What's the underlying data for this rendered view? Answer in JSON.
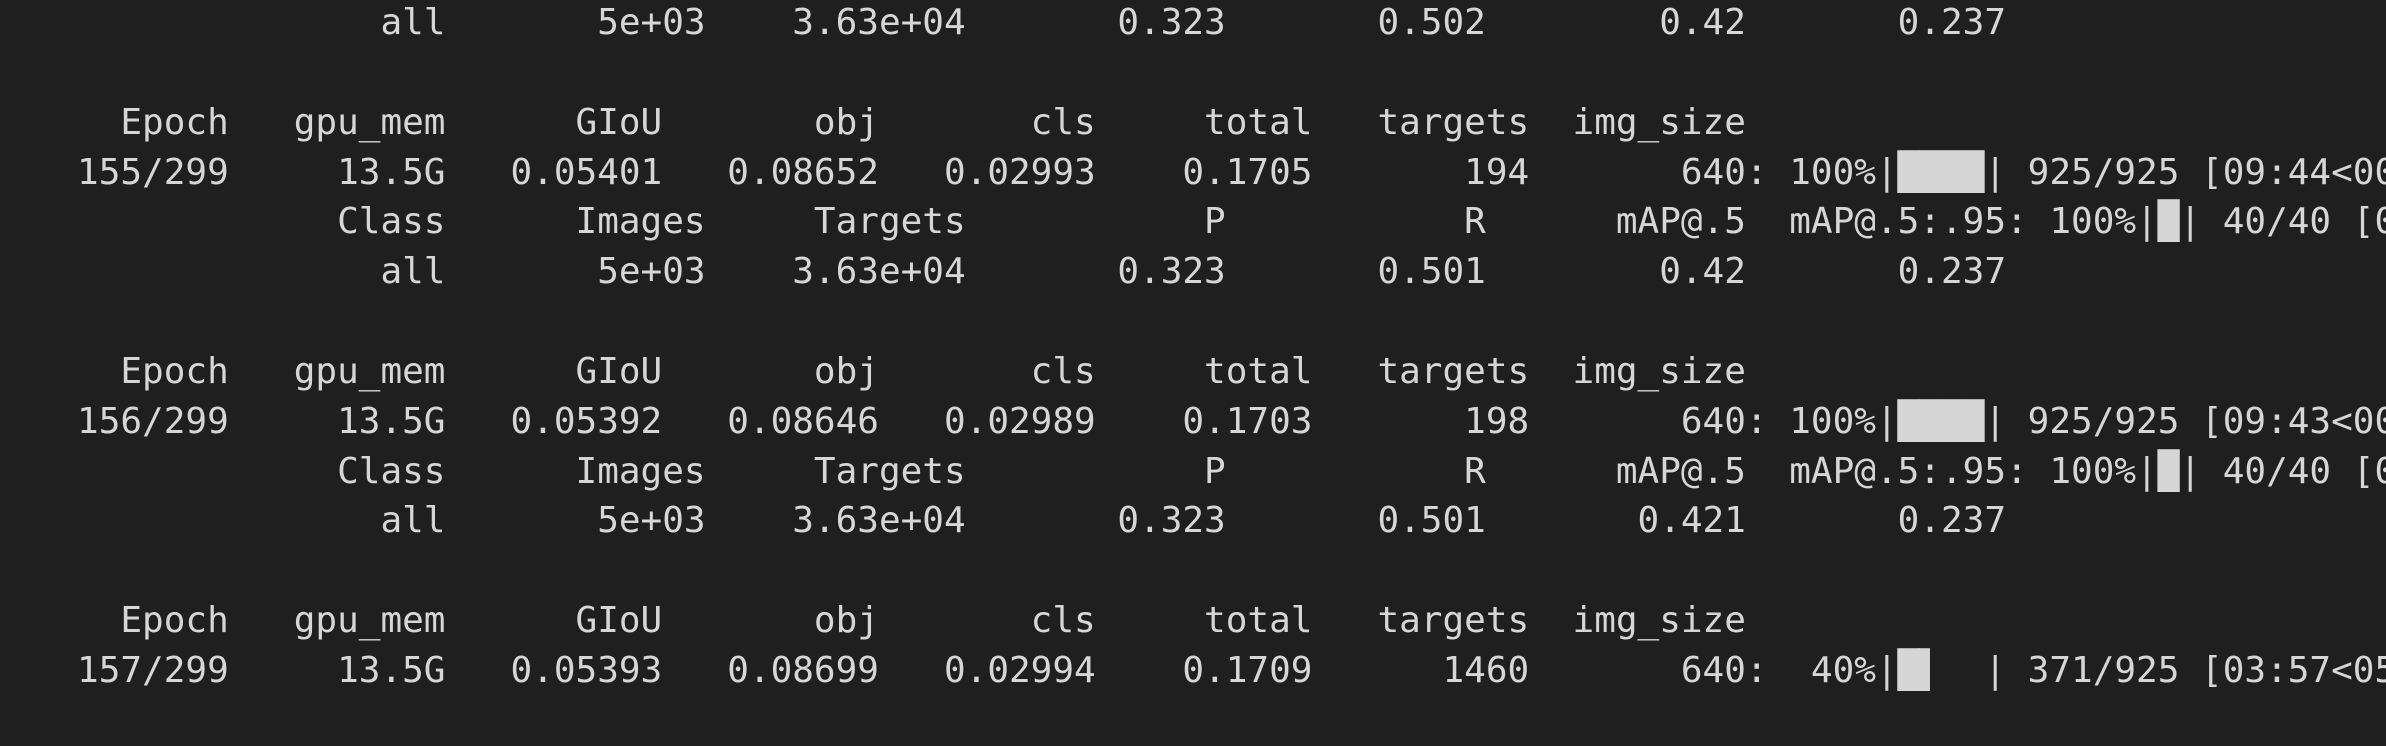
{
  "terminal": {
    "blocks": [
      {
        "lines": [
          "                 all       5e+03    3.63e+04       0.323       0.502        0.42       0.237"
        ]
      },
      {
        "lines": [
          "     Epoch   gpu_mem      GIoU       obj       cls     total   targets  img_size",
          "   155/299     13.5G   0.05401   0.08652   0.02993    0.1705       194       640: 100%|████| 925/925 [09:44<00",
          "               Class      Images     Targets           P           R      mAP@.5  mAP@.5:.95: 100%|█| 40/40 [0",
          "                 all       5e+03    3.63e+04       0.323       0.501        0.42       0.237"
        ]
      },
      {
        "lines": [
          "     Epoch   gpu_mem      GIoU       obj       cls     total   targets  img_size",
          "   156/299     13.5G   0.05392   0.08646   0.02989    0.1703       198       640: 100%|████| 925/925 [09:43<00",
          "               Class      Images     Targets           P           R      mAP@.5  mAP@.5:.95: 100%|█| 40/40 [0",
          "                 all       5e+03    3.63e+04       0.323       0.501       0.421       0.237"
        ]
      },
      {
        "lines": [
          "     Epoch   gpu_mem      GIoU       obj       cls     total   targets  img_size",
          "   157/299     13.5G   0.05393   0.08699   0.02994    0.1709      1460       640:  40%|█▌  | 371/925 [03:57<05"
        ]
      }
    ]
  }
}
